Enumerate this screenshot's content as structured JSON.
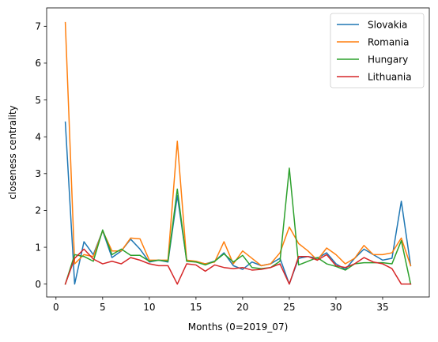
{
  "chart_data": {
    "type": "line",
    "title": "",
    "xlabel": "Months (0=2019_07)",
    "ylabel": "closeness centrality",
    "xlim": [
      -1,
      40
    ],
    "ylim": [
      -0.35,
      7.5
    ],
    "xticks": [
      0,
      5,
      10,
      15,
      20,
      25,
      30,
      35
    ],
    "yticks": [
      0,
      1,
      2,
      3,
      4,
      5,
      6,
      7
    ],
    "grid": false,
    "legend_position": "top-right",
    "x": [
      1,
      2,
      3,
      4,
      5,
      6,
      7,
      8,
      9,
      10,
      11,
      12,
      13,
      14,
      15,
      16,
      17,
      18,
      19,
      20,
      21,
      22,
      23,
      24,
      25,
      26,
      27,
      28,
      29,
      30,
      31,
      32,
      33,
      34,
      35,
      36,
      37,
      38
    ],
    "series": [
      {
        "name": "Slovakia",
        "color": "#1f77b4",
        "values": [
          4.4,
          0.0,
          1.15,
          0.8,
          1.45,
          0.72,
          0.9,
          1.22,
          0.95,
          0.6,
          0.65,
          0.6,
          2.4,
          0.65,
          0.6,
          0.55,
          0.62,
          0.85,
          0.5,
          0.4,
          0.6,
          0.5,
          0.55,
          0.7,
          0.0,
          0.7,
          0.75,
          0.7,
          0.85,
          0.55,
          0.4,
          0.7,
          0.95,
          0.8,
          0.65,
          0.7,
          2.25,
          0.5
        ]
      },
      {
        "name": "Romania",
        "color": "#ff7f0e",
        "values": [
          7.1,
          0.55,
          0.8,
          0.75,
          1.45,
          0.9,
          0.9,
          1.25,
          1.23,
          0.65,
          0.65,
          0.65,
          3.88,
          0.65,
          0.62,
          0.55,
          0.6,
          1.15,
          0.55,
          0.9,
          0.7,
          0.5,
          0.55,
          0.85,
          1.55,
          1.1,
          0.9,
          0.65,
          0.98,
          0.8,
          0.55,
          0.7,
          1.05,
          0.8,
          0.8,
          0.85,
          1.25,
          0.5
        ]
      },
      {
        "name": "Hungary",
        "color": "#2ca02c",
        "values": [
          0.0,
          0.8,
          0.75,
          0.62,
          1.47,
          0.8,
          0.95,
          0.78,
          0.78,
          0.62,
          0.65,
          0.62,
          2.58,
          0.62,
          0.6,
          0.52,
          0.62,
          0.82,
          0.6,
          0.78,
          0.45,
          0.42,
          0.45,
          0.62,
          3.15,
          0.52,
          0.62,
          0.72,
          0.55,
          0.48,
          0.38,
          0.55,
          0.58,
          0.58,
          0.58,
          0.55,
          1.18,
          0.0
        ]
      },
      {
        "name": "Lithuania",
        "color": "#d62728",
        "values": [
          0.0,
          0.7,
          0.95,
          0.68,
          0.55,
          0.62,
          0.55,
          0.72,
          0.65,
          0.55,
          0.5,
          0.5,
          0.0,
          0.55,
          0.52,
          0.35,
          0.52,
          0.45,
          0.42,
          0.45,
          0.38,
          0.4,
          0.45,
          0.55,
          0.0,
          0.75,
          0.75,
          0.65,
          0.8,
          0.5,
          0.45,
          0.55,
          0.72,
          0.6,
          0.55,
          0.42,
          0.0,
          0.0
        ]
      }
    ]
  }
}
